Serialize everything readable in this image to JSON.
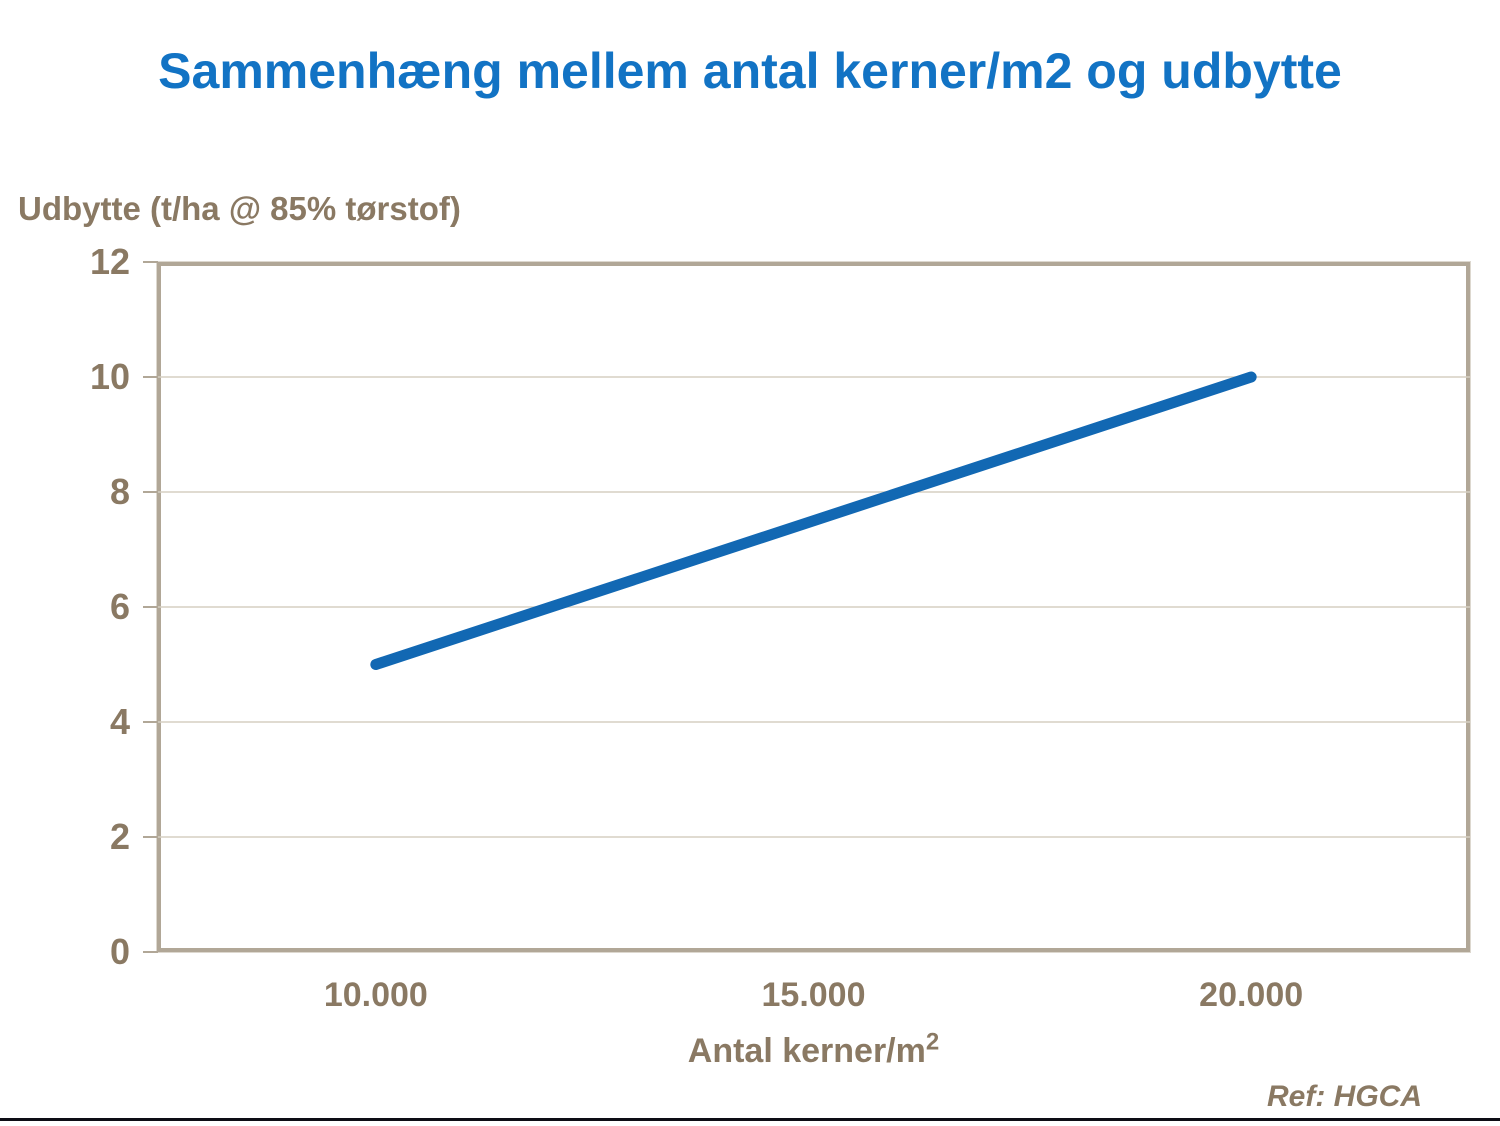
{
  "page": {
    "title": "Sammenhæng mellem antal kerner/m2 og udbytte",
    "ref_note": "Ref: HGCA"
  },
  "colors": {
    "title_blue": "#1273c4",
    "line_blue": "#1268b3",
    "axis_brown": "#8a7963",
    "border_gray": "#b1a797",
    "gridline": "#d6cfc2",
    "bottom_rule": "#0d0d15"
  },
  "chart_data": {
    "type": "line",
    "title": "Sammenhæng mellem antal kerner/m2 og udbytte",
    "ylabel": "Udbytte (t/ha @ 85% tørstof)",
    "xlabel": "Antal kerner/m2",
    "xlabel_display": {
      "base": "Antal kerner/m",
      "sup": "2"
    },
    "series": [
      {
        "name": "udbytte-vs-kerner",
        "x": [
          10000,
          20000
        ],
        "y": [
          5,
          10
        ],
        "color": "#1268b3",
        "stroke_width": 11
      }
    ],
    "x_ticks": [
      {
        "value": 10000,
        "label": "10.000"
      },
      {
        "value": 15000,
        "label": "15.000"
      },
      {
        "value": 20000,
        "label": "20.000"
      }
    ],
    "y_ticks": [
      {
        "value": 0,
        "label": "0"
      },
      {
        "value": 2,
        "label": "2"
      },
      {
        "value": 4,
        "label": "4"
      },
      {
        "value": 6,
        "label": "6"
      },
      {
        "value": 8,
        "label": "8"
      },
      {
        "value": 10,
        "label": "10"
      },
      {
        "value": 12,
        "label": "12"
      }
    ],
    "xlim": [
      7500,
      22500
    ],
    "ylim": [
      0,
      12
    ],
    "grid": "horizontal",
    "legend": "none"
  }
}
